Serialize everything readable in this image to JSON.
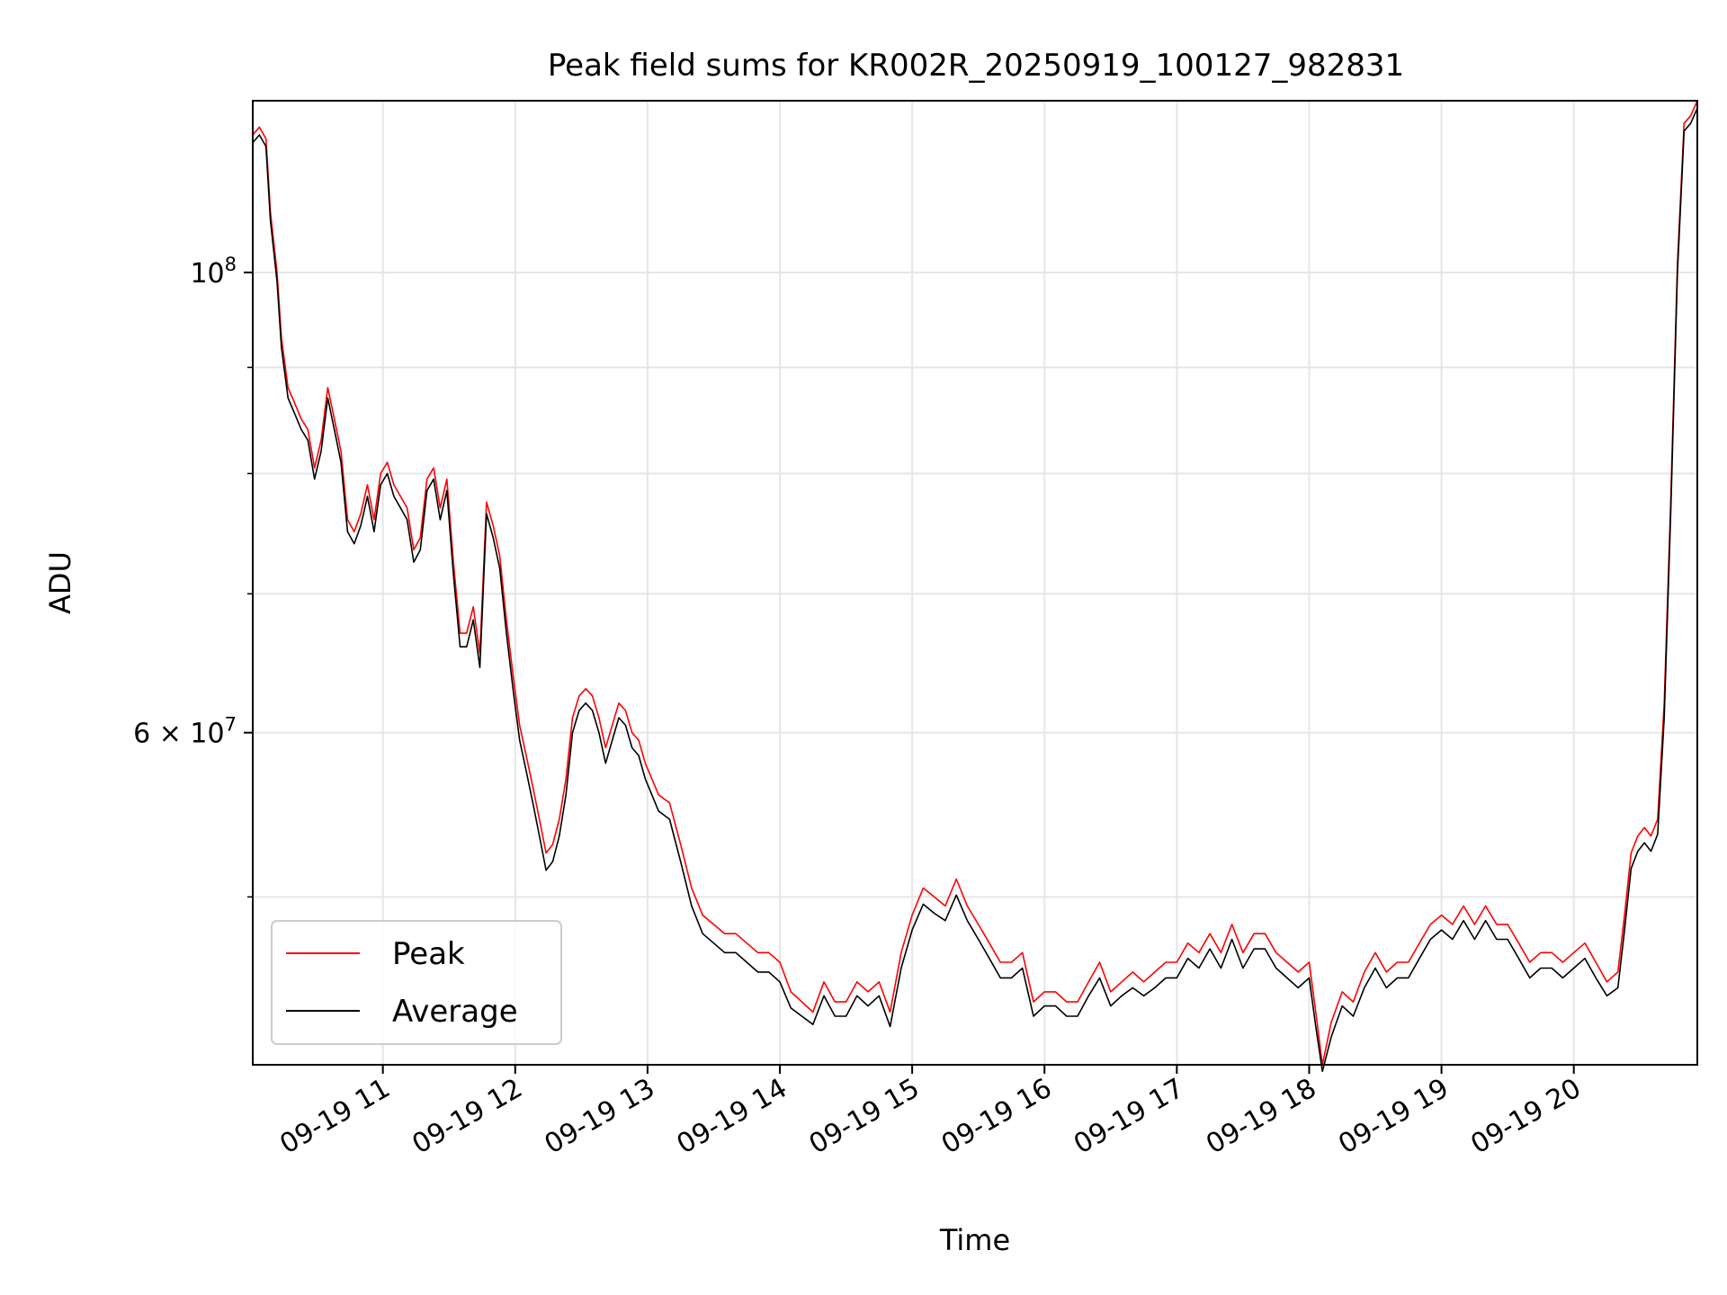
{
  "chart_data": {
    "type": "line",
    "title": "Peak field sums for KR002R_20250919_100127_982831",
    "xlabel": "Time",
    "ylabel": "ADU",
    "x_scale": "time",
    "y_scale": "log",
    "xlim": [
      "2025-09-19 10:01",
      "2025-09-19 20:56"
    ],
    "ylim": [
      41500000,
      121000000
    ],
    "grid": true,
    "legend_placement": "lower-left",
    "x_ticks": [
      {
        "value": "2025-09-19 11:00",
        "label": "09-19 11"
      },
      {
        "value": "2025-09-19 12:00",
        "label": "09-19 12"
      },
      {
        "value": "2025-09-19 13:00",
        "label": "09-19 13"
      },
      {
        "value": "2025-09-19 14:00",
        "label": "09-19 14"
      },
      {
        "value": "2025-09-19 15:00",
        "label": "09-19 15"
      },
      {
        "value": "2025-09-19 16:00",
        "label": "09-19 16"
      },
      {
        "value": "2025-09-19 17:00",
        "label": "09-19 17"
      },
      {
        "value": "2025-09-19 18:00",
        "label": "09-19 18"
      },
      {
        "value": "2025-09-19 19:00",
        "label": "09-19 19"
      },
      {
        "value": "2025-09-19 20:00",
        "label": "09-19 20"
      }
    ],
    "y_major_ticks": [
      {
        "value": 100000000,
        "base": "10",
        "exp": "8",
        "mantissa": ""
      },
      {
        "value": 60000000,
        "base": "10",
        "exp": "7",
        "mantissa": "6 × "
      }
    ],
    "y_minor_ticks": [
      50000000,
      70000000,
      80000000,
      90000000
    ],
    "series": [
      {
        "name": "Peak",
        "color": "#ff0000",
        "x": [
          "2025-09-19 10:01",
          "2025-09-19 10:04",
          "2025-09-19 10:07",
          "2025-09-19 10:09",
          "2025-09-19 10:12",
          "2025-09-19 10:14",
          "2025-09-19 10:17",
          "2025-09-19 10:20",
          "2025-09-19 10:23",
          "2025-09-19 10:26",
          "2025-09-19 10:29",
          "2025-09-19 10:32",
          "2025-09-19 10:35",
          "2025-09-19 10:38",
          "2025-09-19 10:41",
          "2025-09-19 10:44",
          "2025-09-19 10:47",
          "2025-09-19 10:50",
          "2025-09-19 10:53",
          "2025-09-19 10:56",
          "2025-09-19 10:59",
          "2025-09-19 11:02",
          "2025-09-19 11:05",
          "2025-09-19 11:08",
          "2025-09-19 11:11",
          "2025-09-19 11:14",
          "2025-09-19 11:17",
          "2025-09-19 11:20",
          "2025-09-19 11:23",
          "2025-09-19 11:26",
          "2025-09-19 11:29",
          "2025-09-19 11:32",
          "2025-09-19 11:35",
          "2025-09-19 11:38",
          "2025-09-19 11:41",
          "2025-09-19 11:44",
          "2025-09-19 11:47",
          "2025-09-19 11:50",
          "2025-09-19 11:53",
          "2025-09-19 11:56",
          "2025-09-19 11:59",
          "2025-09-19 12:02",
          "2025-09-19 12:05",
          "2025-09-19 12:08",
          "2025-09-19 12:11",
          "2025-09-19 12:14",
          "2025-09-19 12:17",
          "2025-09-19 12:20",
          "2025-09-19 12:23",
          "2025-09-19 12:26",
          "2025-09-19 12:29",
          "2025-09-19 12:32",
          "2025-09-19 12:35",
          "2025-09-19 12:38",
          "2025-09-19 12:41",
          "2025-09-19 12:44",
          "2025-09-19 12:47",
          "2025-09-19 12:50",
          "2025-09-19 12:53",
          "2025-09-19 12:56",
          "2025-09-19 12:59",
          "2025-09-19 13:05",
          "2025-09-19 13:10",
          "2025-09-19 13:15",
          "2025-09-19 13:20",
          "2025-09-19 13:25",
          "2025-09-19 13:30",
          "2025-09-19 13:35",
          "2025-09-19 13:40",
          "2025-09-19 13:45",
          "2025-09-19 13:50",
          "2025-09-19 13:55",
          "2025-09-19 14:00",
          "2025-09-19 14:05",
          "2025-09-19 14:10",
          "2025-09-19 14:15",
          "2025-09-19 14:20",
          "2025-09-19 14:25",
          "2025-09-19 14:30",
          "2025-09-19 14:35",
          "2025-09-19 14:40",
          "2025-09-19 14:45",
          "2025-09-19 14:50",
          "2025-09-19 14:55",
          "2025-09-19 15:00",
          "2025-09-19 15:05",
          "2025-09-19 15:10",
          "2025-09-19 15:15",
          "2025-09-19 15:20",
          "2025-09-19 15:25",
          "2025-09-19 15:30",
          "2025-09-19 15:35",
          "2025-09-19 15:40",
          "2025-09-19 15:45",
          "2025-09-19 15:50",
          "2025-09-19 15:55",
          "2025-09-19 16:00",
          "2025-09-19 16:05",
          "2025-09-19 16:10",
          "2025-09-19 16:15",
          "2025-09-19 16:20",
          "2025-09-19 16:25",
          "2025-09-19 16:30",
          "2025-09-19 16:35",
          "2025-09-19 16:40",
          "2025-09-19 16:45",
          "2025-09-19 16:50",
          "2025-09-19 16:55",
          "2025-09-19 17:00",
          "2025-09-19 17:05",
          "2025-09-19 17:10",
          "2025-09-19 17:15",
          "2025-09-19 17:20",
          "2025-09-19 17:25",
          "2025-09-19 17:30",
          "2025-09-19 17:35",
          "2025-09-19 17:40",
          "2025-09-19 17:45",
          "2025-09-19 17:50",
          "2025-09-19 17:55",
          "2025-09-19 18:00",
          "2025-09-19 18:03",
          "2025-09-19 18:06",
          "2025-09-19 18:10",
          "2025-09-19 18:15",
          "2025-09-19 18:20",
          "2025-09-19 18:25",
          "2025-09-19 18:30",
          "2025-09-19 18:35",
          "2025-09-19 18:40",
          "2025-09-19 18:45",
          "2025-09-19 18:50",
          "2025-09-19 18:55",
          "2025-09-19 19:00",
          "2025-09-19 19:05",
          "2025-09-19 19:10",
          "2025-09-19 19:15",
          "2025-09-19 19:20",
          "2025-09-19 19:25",
          "2025-09-19 19:30",
          "2025-09-19 19:35",
          "2025-09-19 19:40",
          "2025-09-19 19:45",
          "2025-09-19 19:50",
          "2025-09-19 19:55",
          "2025-09-19 20:00",
          "2025-09-19 20:05",
          "2025-09-19 20:10",
          "2025-09-19 20:15",
          "2025-09-19 20:20",
          "2025-09-19 20:23",
          "2025-09-19 20:26",
          "2025-09-19 20:29",
          "2025-09-19 20:32",
          "2025-09-19 20:35",
          "2025-09-19 20:38",
          "2025-09-19 20:41",
          "2025-09-19 20:44",
          "2025-09-19 20:47",
          "2025-09-19 20:50",
          "2025-09-19 20:53",
          "2025-09-19 20:56"
        ],
        "values": [
          116500000,
          117500000,
          116000000,
          107000000,
          100000000,
          93000000,
          88000000,
          86500000,
          85000000,
          84000000,
          80500000,
          83000000,
          88000000,
          85000000,
          82000000,
          76000000,
          75000000,
          76500000,
          79000000,
          76000000,
          80000000,
          81000000,
          79000000,
          78000000,
          77000000,
          73500000,
          74500000,
          79500000,
          80500000,
          77000000,
          79500000,
          72500000,
          67000000,
          67000000,
          69000000,
          65500000,
          77500000,
          75500000,
          73000000,
          68000000,
          64000000,
          60500000,
          58500000,
          56500000,
          54500000,
          52500000,
          53000000,
          54500000,
          57000000,
          61000000,
          62500000,
          63000000,
          62500000,
          61000000,
          59000000,
          60500000,
          62000000,
          61500000,
          60000000,
          59500000,
          58000000,
          56000000,
          55500000,
          53000000,
          50500000,
          49000000,
          48500000,
          48000000,
          48000000,
          47500000,
          47000000,
          47000000,
          46500000,
          45000000,
          44500000,
          44000000,
          45500000,
          44500000,
          44500000,
          45500000,
          45000000,
          45500000,
          44000000,
          47000000,
          49000000,
          50500000,
          50000000,
          49500000,
          51000000,
          49500000,
          48500000,
          47500000,
          46500000,
          46500000,
          47000000,
          44500000,
          45000000,
          45000000,
          44500000,
          44500000,
          45500000,
          46500000,
          45000000,
          45500000,
          46000000,
          45500000,
          46000000,
          46500000,
          46500000,
          47500000,
          47000000,
          48000000,
          47000000,
          48500000,
          47000000,
          48000000,
          48000000,
          47000000,
          46500000,
          46000000,
          46500000,
          44000000,
          41500000,
          43500000,
          45000000,
          44500000,
          46000000,
          47000000,
          46000000,
          46500000,
          46500000,
          47500000,
          48500000,
          49000000,
          48500000,
          49500000,
          48500000,
          49500000,
          48500000,
          48500000,
          47500000,
          46500000,
          47000000,
          47000000,
          46500000,
          47000000,
          47500000,
          46500000,
          45500000,
          46000000,
          49000000,
          52500000,
          53500000,
          54000000,
          53500000,
          54500000,
          62000000,
          78000000,
          101000000,
          118000000,
          119000000,
          121000000
        ]
      },
      {
        "name": "Average",
        "color": "#000000",
        "x": [
          "2025-09-19 10:01",
          "2025-09-19 10:04",
          "2025-09-19 10:07",
          "2025-09-19 10:09",
          "2025-09-19 10:12",
          "2025-09-19 10:14",
          "2025-09-19 10:17",
          "2025-09-19 10:20",
          "2025-09-19 10:23",
          "2025-09-19 10:26",
          "2025-09-19 10:29",
          "2025-09-19 10:32",
          "2025-09-19 10:35",
          "2025-09-19 10:38",
          "2025-09-19 10:41",
          "2025-09-19 10:44",
          "2025-09-19 10:47",
          "2025-09-19 10:50",
          "2025-09-19 10:53",
          "2025-09-19 10:56",
          "2025-09-19 10:59",
          "2025-09-19 11:02",
          "2025-09-19 11:05",
          "2025-09-19 11:08",
          "2025-09-19 11:11",
          "2025-09-19 11:14",
          "2025-09-19 11:17",
          "2025-09-19 11:20",
          "2025-09-19 11:23",
          "2025-09-19 11:26",
          "2025-09-19 11:29",
          "2025-09-19 11:32",
          "2025-09-19 11:35",
          "2025-09-19 11:38",
          "2025-09-19 11:41",
          "2025-09-19 11:44",
          "2025-09-19 11:47",
          "2025-09-19 11:50",
          "2025-09-19 11:53",
          "2025-09-19 11:56",
          "2025-09-19 11:59",
          "2025-09-19 12:02",
          "2025-09-19 12:05",
          "2025-09-19 12:08",
          "2025-09-19 12:11",
          "2025-09-19 12:14",
          "2025-09-19 12:17",
          "2025-09-19 12:20",
          "2025-09-19 12:23",
          "2025-09-19 12:26",
          "2025-09-19 12:29",
          "2025-09-19 12:32",
          "2025-09-19 12:35",
          "2025-09-19 12:38",
          "2025-09-19 12:41",
          "2025-09-19 12:44",
          "2025-09-19 12:47",
          "2025-09-19 12:50",
          "2025-09-19 12:53",
          "2025-09-19 12:56",
          "2025-09-19 12:59",
          "2025-09-19 13:05",
          "2025-09-19 13:10",
          "2025-09-19 13:15",
          "2025-09-19 13:20",
          "2025-09-19 13:25",
          "2025-09-19 13:30",
          "2025-09-19 13:35",
          "2025-09-19 13:40",
          "2025-09-19 13:45",
          "2025-09-19 13:50",
          "2025-09-19 13:55",
          "2025-09-19 14:00",
          "2025-09-19 14:05",
          "2025-09-19 14:10",
          "2025-09-19 14:15",
          "2025-09-19 14:20",
          "2025-09-19 14:25",
          "2025-09-19 14:30",
          "2025-09-19 14:35",
          "2025-09-19 14:40",
          "2025-09-19 14:45",
          "2025-09-19 14:50",
          "2025-09-19 14:55",
          "2025-09-19 15:00",
          "2025-09-19 15:05",
          "2025-09-19 15:10",
          "2025-09-19 15:15",
          "2025-09-19 15:20",
          "2025-09-19 15:25",
          "2025-09-19 15:30",
          "2025-09-19 15:35",
          "2025-09-19 15:40",
          "2025-09-19 15:45",
          "2025-09-19 15:50",
          "2025-09-19 15:55",
          "2025-09-19 16:00",
          "2025-09-19 16:05",
          "2025-09-19 16:10",
          "2025-09-19 16:15",
          "2025-09-19 16:20",
          "2025-09-19 16:25",
          "2025-09-19 16:30",
          "2025-09-19 16:35",
          "2025-09-19 16:40",
          "2025-09-19 16:45",
          "2025-09-19 16:50",
          "2025-09-19 16:55",
          "2025-09-19 17:00",
          "2025-09-19 17:05",
          "2025-09-19 17:10",
          "2025-09-19 17:15",
          "2025-09-19 17:20",
          "2025-09-19 17:25",
          "2025-09-19 17:30",
          "2025-09-19 17:35",
          "2025-09-19 17:40",
          "2025-09-19 17:45",
          "2025-09-19 17:50",
          "2025-09-19 17:55",
          "2025-09-19 18:00",
          "2025-09-19 18:03",
          "2025-09-19 18:06",
          "2025-09-19 18:10",
          "2025-09-19 18:15",
          "2025-09-19 18:20",
          "2025-09-19 18:25",
          "2025-09-19 18:30",
          "2025-09-19 18:35",
          "2025-09-19 18:40",
          "2025-09-19 18:45",
          "2025-09-19 18:50",
          "2025-09-19 18:55",
          "2025-09-19 19:00",
          "2025-09-19 19:05",
          "2025-09-19 19:10",
          "2025-09-19 19:15",
          "2025-09-19 19:20",
          "2025-09-19 19:25",
          "2025-09-19 19:30",
          "2025-09-19 19:35",
          "2025-09-19 19:40",
          "2025-09-19 19:45",
          "2025-09-19 19:50",
          "2025-09-19 19:55",
          "2025-09-19 20:00",
          "2025-09-19 20:05",
          "2025-09-19 20:10",
          "2025-09-19 20:15",
          "2025-09-19 20:20",
          "2025-09-19 20:23",
          "2025-09-19 20:26",
          "2025-09-19 20:29",
          "2025-09-19 20:32",
          "2025-09-19 20:35",
          "2025-09-19 20:38",
          "2025-09-19 20:41",
          "2025-09-19 20:44",
          "2025-09-19 20:47",
          "2025-09-19 20:50",
          "2025-09-19 20:53",
          "2025-09-19 20:56"
        ],
        "values": [
          115500000,
          116500000,
          115000000,
          106000000,
          99000000,
          92000000,
          87000000,
          85500000,
          84000000,
          83000000,
          79500000,
          82000000,
          87000000,
          84000000,
          81000000,
          75000000,
          74000000,
          75500000,
          78000000,
          75000000,
          79000000,
          80000000,
          78000000,
          77000000,
          76000000,
          72500000,
          73500000,
          78500000,
          79500000,
          76000000,
          78500000,
          71500000,
          66000000,
          66000000,
          68000000,
          64500000,
          76500000,
          74500000,
          72000000,
          67000000,
          63000000,
          59500000,
          57500000,
          55500000,
          53500000,
          51500000,
          52000000,
          53500000,
          56000000,
          60000000,
          61500000,
          62000000,
          61500000,
          60000000,
          58000000,
          59500000,
          61000000,
          60500000,
          59000000,
          58500000,
          57000000,
          55000000,
          54500000,
          52000000,
          49500000,
          48000000,
          47500000,
          47000000,
          47000000,
          46500000,
          46000000,
          46000000,
          45500000,
          44200000,
          43800000,
          43400000,
          44800000,
          43800000,
          43800000,
          44800000,
          44300000,
          44800000,
          43300000,
          46200000,
          48200000,
          49600000,
          49100000,
          48700000,
          50100000,
          48700000,
          47700000,
          46700000,
          45700000,
          45700000,
          46200000,
          43800000,
          44300000,
          44300000,
          43800000,
          43800000,
          44800000,
          45700000,
          44300000,
          44800000,
          45200000,
          44800000,
          45200000,
          45700000,
          45700000,
          46700000,
          46200000,
          47200000,
          46200000,
          47700000,
          46200000,
          47200000,
          47200000,
          46200000,
          45700000,
          45200000,
          45700000,
          43300000,
          41200000,
          42800000,
          44300000,
          43800000,
          45200000,
          46200000,
          45200000,
          45700000,
          45700000,
          46700000,
          47700000,
          48200000,
          47700000,
          48700000,
          47700000,
          48700000,
          47700000,
          47700000,
          46700000,
          45700000,
          46200000,
          46200000,
          45700000,
          46200000,
          46700000,
          45700000,
          44800000,
          45200000,
          48200000,
          51600000,
          52600000,
          53100000,
          52600000,
          53600000,
          61000000,
          77000000,
          100000000,
          117000000,
          118000000,
          120000000
        ]
      }
    ]
  }
}
